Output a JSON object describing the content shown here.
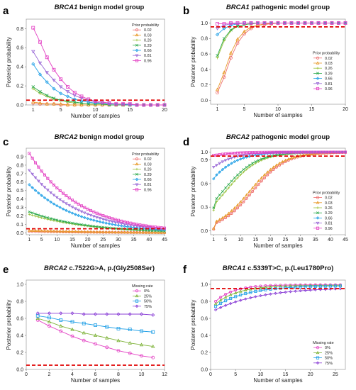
{
  "chart_data": [
    {
      "panel": "a",
      "type": "line",
      "title_gene": "BRCA1",
      "title_rest": " benign model group",
      "xlabel": "Number of samples",
      "ylabel": "Posterior probability",
      "xlim": [
        0,
        20
      ],
      "ylim": [
        0,
        0.9
      ],
      "xticks": [
        1,
        5,
        10,
        15,
        20
      ],
      "yticks": [
        0.0,
        0.2,
        0.4,
        0.6,
        0.8
      ],
      "threshold": 0.05,
      "legend_title": "Prior probability",
      "legend_position": "top-right",
      "x": [
        1,
        2,
        3,
        4,
        5,
        6,
        7,
        8,
        9,
        10,
        11,
        12,
        13,
        14,
        15,
        16,
        17,
        18,
        19,
        20
      ],
      "series": [
        {
          "name": "0.02",
          "color": "#ee7070",
          "marker": "circle",
          "values": [
            0.02,
            0.01,
            0.01,
            0.01,
            0.0,
            0.0,
            0.0,
            0.0,
            0.0,
            0.0,
            0.0,
            0.0,
            0.0,
            0.0,
            0.0,
            0.0,
            0.0,
            0.0,
            0.0,
            0.0
          ]
        },
        {
          "name": "0.03",
          "color": "#e89a2a",
          "marker": "triangle",
          "values": [
            0.03,
            0.02,
            0.01,
            0.01,
            0.01,
            0.0,
            0.0,
            0.0,
            0.0,
            0.0,
            0.0,
            0.0,
            0.0,
            0.0,
            0.0,
            0.0,
            0.0,
            0.0,
            0.0,
            0.0
          ]
        },
        {
          "name": "0.26",
          "color": "#9ac23c",
          "marker": "plus",
          "values": [
            0.17,
            0.12,
            0.09,
            0.06,
            0.05,
            0.03,
            0.02,
            0.02,
            0.01,
            0.01,
            0.01,
            0.0,
            0.0,
            0.0,
            0.0,
            0.0,
            0.0,
            0.0,
            0.0,
            0.0
          ]
        },
        {
          "name": "0.29",
          "color": "#2aa84a",
          "marker": "x",
          "values": [
            0.19,
            0.14,
            0.1,
            0.07,
            0.05,
            0.04,
            0.03,
            0.02,
            0.01,
            0.01,
            0.01,
            0.0,
            0.0,
            0.0,
            0.0,
            0.0,
            0.0,
            0.0,
            0.0,
            0.0
          ]
        },
        {
          "name": "0.66",
          "color": "#1f9fe6",
          "marker": "diamond",
          "values": [
            0.43,
            0.32,
            0.24,
            0.17,
            0.12,
            0.09,
            0.06,
            0.04,
            0.03,
            0.02,
            0.02,
            0.01,
            0.01,
            0.01,
            0.0,
            0.0,
            0.0,
            0.0,
            0.0,
            0.0
          ]
        },
        {
          "name": "0.81",
          "color": "#9a6ad6",
          "marker": "triangle-down",
          "values": [
            0.56,
            0.44,
            0.34,
            0.26,
            0.19,
            0.14,
            0.1,
            0.07,
            0.05,
            0.03,
            0.02,
            0.02,
            0.01,
            0.01,
            0.01,
            0.0,
            0.0,
            0.0,
            0.0,
            0.0
          ]
        },
        {
          "name": "0.96",
          "color": "#e33fc3",
          "marker": "square",
          "values": [
            0.81,
            0.66,
            0.5,
            0.37,
            0.27,
            0.19,
            0.13,
            0.09,
            0.06,
            0.04,
            0.03,
            0.02,
            0.01,
            0.01,
            0.01,
            0.0,
            0.0,
            0.0,
            0.0,
            0.0
          ]
        }
      ]
    },
    {
      "panel": "b",
      "type": "line",
      "title_gene": "BRCA1",
      "title_rest": " pathogenic model group",
      "xlabel": "Number of samples",
      "ylabel": "Posterior probability",
      "xlim": [
        0,
        20
      ],
      "ylim": [
        -0.05,
        1.05
      ],
      "xticks": [
        1,
        5,
        10,
        15,
        20
      ],
      "yticks": [
        0.0,
        0.2,
        0.4,
        0.6,
        0.8,
        1.0
      ],
      "threshold": 0.95,
      "legend_title": "Prior probability",
      "legend_position": "center-right",
      "x": [
        1,
        2,
        3,
        4,
        5,
        6,
        7,
        8,
        9,
        10,
        11,
        12,
        13,
        14,
        15,
        16,
        17,
        18,
        19,
        20
      ],
      "series": [
        {
          "name": "0.02",
          "color": "#ee7070",
          "marker": "circle",
          "values": [
            0.1,
            0.3,
            0.55,
            0.74,
            0.86,
            0.93,
            0.97,
            0.98,
            0.99,
            1.0,
            1.0,
            1.0,
            1.0,
            1.0,
            1.0,
            1.0,
            1.0,
            1.0,
            1.0,
            1.0
          ]
        },
        {
          "name": "0.03",
          "color": "#e89a2a",
          "marker": "triangle",
          "values": [
            0.14,
            0.36,
            0.61,
            0.79,
            0.89,
            0.95,
            0.97,
            0.99,
            0.99,
            1.0,
            1.0,
            1.0,
            1.0,
            1.0,
            1.0,
            1.0,
            1.0,
            1.0,
            1.0,
            1.0
          ]
        },
        {
          "name": "0.26",
          "color": "#9ac23c",
          "marker": "plus",
          "values": [
            0.55,
            0.77,
            0.9,
            0.96,
            0.98,
            0.99,
            1.0,
            1.0,
            1.0,
            1.0,
            1.0,
            1.0,
            1.0,
            1.0,
            1.0,
            1.0,
            1.0,
            1.0,
            1.0,
            1.0
          ]
        },
        {
          "name": "0.29",
          "color": "#2aa84a",
          "marker": "x",
          "values": [
            0.58,
            0.8,
            0.91,
            0.96,
            0.98,
            0.99,
            1.0,
            1.0,
            1.0,
            1.0,
            1.0,
            1.0,
            1.0,
            1.0,
            1.0,
            1.0,
            1.0,
            1.0,
            1.0,
            1.0
          ]
        },
        {
          "name": "0.66",
          "color": "#1f9fe6",
          "marker": "diamond",
          "values": [
            0.85,
            0.93,
            0.97,
            0.99,
            1.0,
            1.0,
            1.0,
            1.0,
            1.0,
            1.0,
            1.0,
            1.0,
            1.0,
            1.0,
            1.0,
            1.0,
            1.0,
            1.0,
            1.0,
            1.0
          ]
        },
        {
          "name": "0.81",
          "color": "#9a6ad6",
          "marker": "triangle-down",
          "values": [
            0.93,
            0.97,
            0.99,
            0.99,
            1.0,
            1.0,
            1.0,
            1.0,
            1.0,
            1.0,
            1.0,
            1.0,
            1.0,
            1.0,
            1.0,
            1.0,
            1.0,
            1.0,
            1.0,
            1.0
          ]
        },
        {
          "name": "0.96",
          "color": "#e33fc3",
          "marker": "square",
          "values": [
            0.99,
            0.99,
            1.0,
            1.0,
            1.0,
            1.0,
            1.0,
            1.0,
            1.0,
            1.0,
            1.0,
            1.0,
            1.0,
            1.0,
            1.0,
            1.0,
            1.0,
            1.0,
            1.0,
            1.0
          ]
        }
      ]
    },
    {
      "panel": "c",
      "type": "line",
      "title_gene": "BRCA2",
      "title_rest": " benign model group",
      "xlabel": "Number of samples",
      "ylabel": "Posterior probability",
      "xlim": [
        0,
        45
      ],
      "ylim": [
        -0.02,
        1.0
      ],
      "xticks": [
        1,
        5,
        10,
        15,
        20,
        25,
        30,
        35,
        40,
        45
      ],
      "yticks": [
        0.0,
        0.1,
        0.2,
        0.3,
        0.4,
        0.5,
        0.6,
        0.7,
        0.8,
        0.9
      ],
      "threshold": 0.05,
      "legend_title": "Prior probability",
      "legend_position": "top-right",
      "x_step": 1,
      "x_start": 1,
      "x_end": 45,
      "series": [
        {
          "name": "0.02",
          "color": "#ee7070",
          "marker": "circle",
          "start": 0.02,
          "end": 0.004
        },
        {
          "name": "0.03",
          "color": "#e89a2a",
          "marker": "triangle",
          "start": 0.03,
          "end": 0.005
        },
        {
          "name": "0.26",
          "color": "#9ac23c",
          "marker": "plus",
          "start": 0.22,
          "end": 0.02
        },
        {
          "name": "0.29",
          "color": "#2aa84a",
          "marker": "x",
          "start": 0.25,
          "end": 0.02
        },
        {
          "name": "0.66",
          "color": "#1f9fe6",
          "marker": "diamond",
          "start": 0.57,
          "end": 0.03
        },
        {
          "name": "0.81",
          "color": "#9a6ad6",
          "marker": "triangle-down",
          "start": 0.74,
          "end": 0.04
        },
        {
          "name": "0.96",
          "color": "#e33fc3",
          "marker": "square",
          "start": 0.94,
          "end": 0.05
        }
      ]
    },
    {
      "panel": "d",
      "type": "line",
      "title_gene": "BRCA2",
      "title_rest": " pathogenic model group",
      "xlabel": "Number of samples",
      "ylabel": "Posterior probability",
      "xlim": [
        0,
        45
      ],
      "ylim": [
        -0.05,
        1.05
      ],
      "xticks": [
        1,
        5,
        10,
        15,
        20,
        25,
        30,
        35,
        40,
        45
      ],
      "yticks": [
        0.0,
        0.3,
        0.6,
        0.9,
        1.0
      ],
      "threshold": 0.95,
      "legend_title": "Prior probability",
      "legend_position": "bottom-right",
      "x_step": 1,
      "x_start": 1,
      "x_end": 45,
      "series": [
        {
          "name": "0.02",
          "color": "#ee7070",
          "marker": "circle",
          "start": 0.02,
          "end": 1.0,
          "rate": 0.18,
          "mid": 14
        },
        {
          "name": "0.03",
          "color": "#e89a2a",
          "marker": "triangle",
          "start": 0.03,
          "end": 1.0,
          "rate": 0.18,
          "mid": 13
        },
        {
          "name": "0.26",
          "color": "#9ac23c",
          "marker": "plus",
          "start": 0.26,
          "end": 1.0,
          "rate": 0.18,
          "mid": 5
        },
        {
          "name": "0.29",
          "color": "#2aa84a",
          "marker": "x",
          "start": 0.29,
          "end": 1.0,
          "rate": 0.18,
          "mid": 4
        },
        {
          "name": "0.66",
          "color": "#1f9fe6",
          "marker": "diamond",
          "start": 0.66,
          "end": 1.0,
          "rate": 0.18,
          "mid": -3
        },
        {
          "name": "0.81",
          "color": "#9a6ad6",
          "marker": "triangle-down",
          "start": 0.81,
          "end": 1.0,
          "rate": 0.18,
          "mid": -7
        },
        {
          "name": "0.96",
          "color": "#e33fc3",
          "marker": "square",
          "start": 0.96,
          "end": 1.0,
          "rate": 0.18,
          "mid": -16
        }
      ]
    },
    {
      "panel": "e",
      "type": "line",
      "title_gene": "BRCA2",
      "title_rest": " c.7522G>A, p.(Gly2508Ser)",
      "xlabel": "Number of samples",
      "ylabel": "Posterior probability",
      "xlim": [
        0,
        12
      ],
      "ylim": [
        0.0,
        1.05
      ],
      "xticks": [
        0,
        2,
        4,
        6,
        8,
        10,
        12
      ],
      "yticks": [
        0.0,
        0.2,
        0.4,
        0.6,
        0.8,
        1.0
      ],
      "threshold": 0.05,
      "legend_title": "Missing rate",
      "legend_position": "top-right",
      "x": [
        1,
        2,
        3,
        4,
        5,
        6,
        7,
        8,
        9,
        10,
        11
      ],
      "series": [
        {
          "name": "0%",
          "color": "#e33fc3",
          "marker": "circle",
          "values": [
            0.58,
            0.51,
            0.45,
            0.39,
            0.34,
            0.3,
            0.26,
            0.22,
            0.19,
            0.16,
            0.14
          ]
        },
        {
          "name": "25%",
          "color": "#7fb33a",
          "marker": "triangle",
          "values": [
            0.6,
            0.56,
            0.51,
            0.47,
            0.43,
            0.4,
            0.37,
            0.34,
            0.31,
            0.29,
            0.27
          ]
        },
        {
          "name": "50%",
          "color": "#1f9fe6",
          "marker": "square",
          "values": [
            0.63,
            0.61,
            0.58,
            0.56,
            0.54,
            0.52,
            0.5,
            0.48,
            0.47,
            0.45,
            0.44
          ]
        },
        {
          "name": "75%",
          "color": "#8a3fd6",
          "marker": "diamond",
          "values": [
            0.66,
            0.66,
            0.66,
            0.66,
            0.65,
            0.65,
            0.65,
            0.65,
            0.65,
            0.65,
            0.64
          ]
        }
      ]
    },
    {
      "panel": "f",
      "type": "line",
      "title_gene": "BRCA1",
      "title_rest": " c.5339T>C, p.(Leu1780Pro)",
      "xlabel": "Number of samples",
      "ylabel": "Posterior probability",
      "xlim": [
        0,
        27
      ],
      "ylim": [
        0.0,
        1.05
      ],
      "xticks": [
        0,
        5,
        10,
        15,
        20,
        25
      ],
      "yticks": [
        0.0,
        0.2,
        0.4,
        0.6,
        0.8,
        1.0
      ],
      "threshold": 0.95,
      "legend_title": "Missing rate",
      "legend_position": "bottom-right",
      "x_step": 1,
      "x_start": 1,
      "x_end": 26,
      "series": [
        {
          "name": "0%",
          "color": "#e33fc3",
          "marker": "circle",
          "start": 0.8,
          "end": 0.995,
          "rate": 0.28
        },
        {
          "name": "25%",
          "color": "#7fb33a",
          "marker": "triangle",
          "start": 0.77,
          "end": 0.99,
          "rate": 0.22
        },
        {
          "name": "50%",
          "color": "#1f9fe6",
          "marker": "square",
          "start": 0.74,
          "end": 0.985,
          "rate": 0.16
        },
        {
          "name": "75%",
          "color": "#8a3fd6",
          "marker": "diamond",
          "start": 0.7,
          "end": 0.965,
          "rate": 0.11
        }
      ]
    }
  ]
}
